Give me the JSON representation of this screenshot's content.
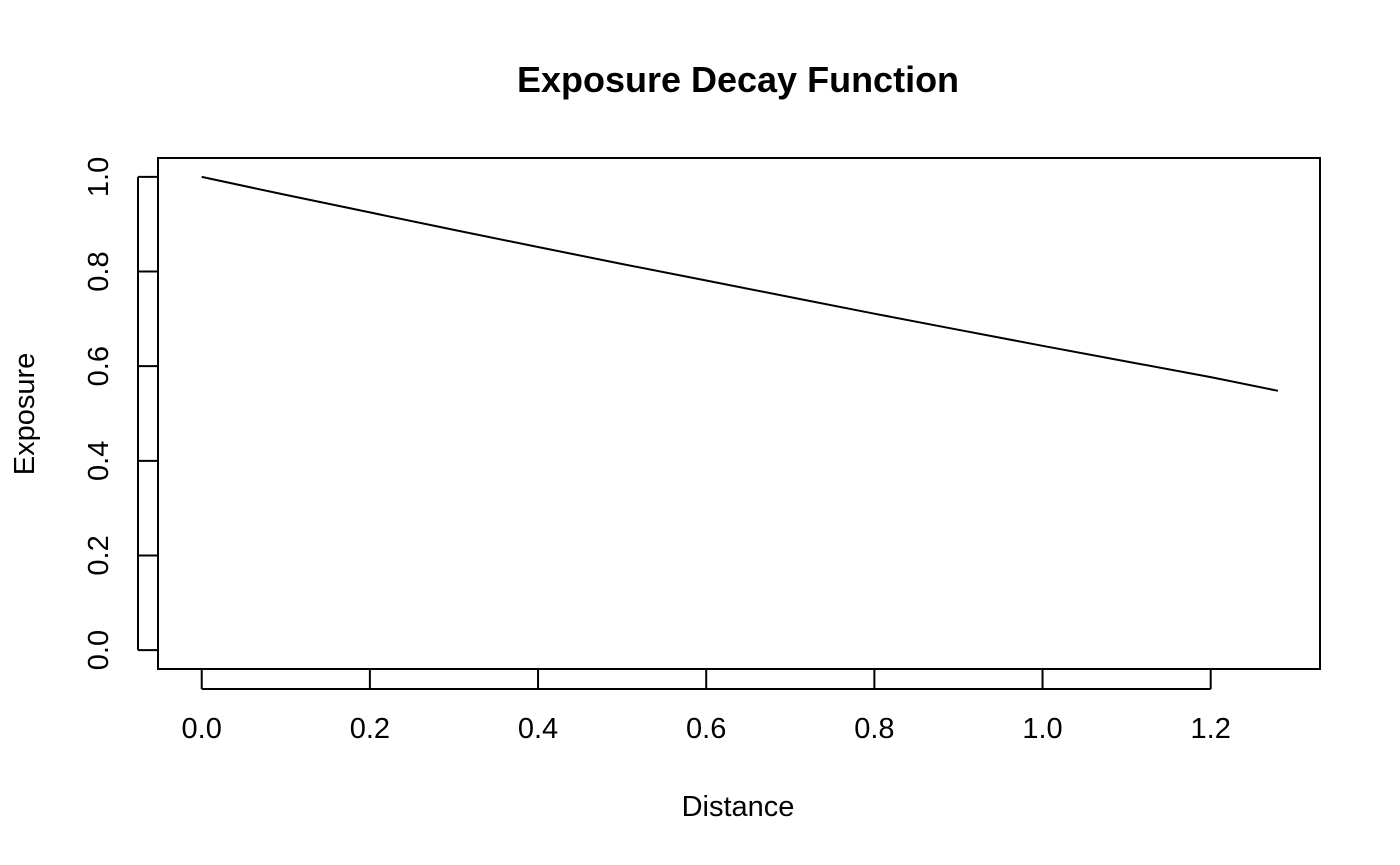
{
  "chart_data": {
    "type": "line",
    "title": "Exposure Decay Function",
    "xlabel": "Distance",
    "ylabel": "Exposure",
    "xlim": [
      -0.052,
      1.33
    ],
    "ylim": [
      -0.04,
      1.04
    ],
    "x_ticks": [
      0.0,
      0.2,
      0.4,
      0.6,
      0.8,
      1.0,
      1.2
    ],
    "x_tick_labels": [
      "0.0",
      "0.2",
      "0.4",
      "0.6",
      "0.8",
      "1.0",
      "1.2"
    ],
    "y_ticks": [
      0.0,
      0.2,
      0.4,
      0.6,
      0.8,
      1.0
    ],
    "y_tick_labels": [
      "0.0",
      "0.2",
      "0.4",
      "0.6",
      "0.8",
      "1.0"
    ],
    "grid": false,
    "legend": "none",
    "line_color": "#000000",
    "series": [
      {
        "x": [
          0.0,
          0.1,
          0.2,
          0.3,
          0.4,
          0.5,
          0.6,
          0.7,
          0.8,
          0.9,
          1.0,
          1.1,
          1.2,
          1.28
        ],
        "y": [
          1.0,
          0.962,
          0.925,
          0.888,
          0.852,
          0.816,
          0.781,
          0.746,
          0.711,
          0.677,
          0.643,
          0.61,
          0.577,
          0.548
        ]
      }
    ]
  }
}
